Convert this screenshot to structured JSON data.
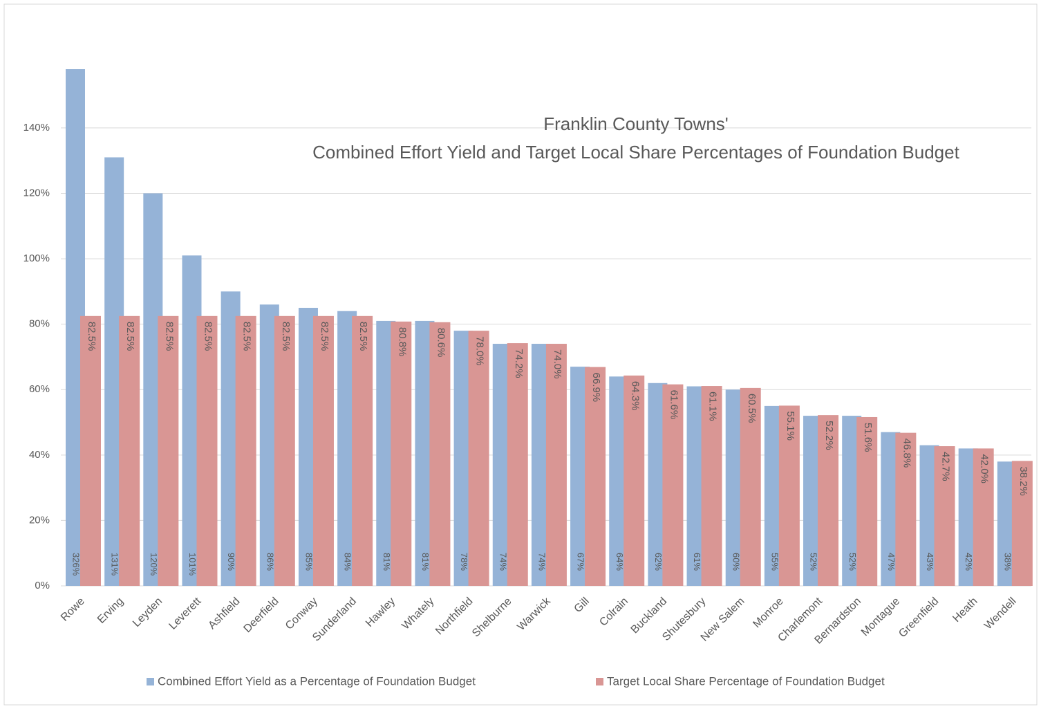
{
  "chart_data": {
    "type": "bar",
    "title": [
      "Franklin County Towns'",
      "Combined Effort Yield and Target Local Share Percentages of Foundation Budget"
    ],
    "categories": [
      "Rowe",
      "Erving",
      "Leyden",
      "Leverett",
      "Ashfield",
      "Deerfield",
      "Conway",
      "Sunderland",
      "Hawley",
      "Whately",
      "Northfield",
      "Shelburne",
      "Warwick",
      "Gill",
      "Colrain",
      "Buckland",
      "Shutesbury",
      "New Salem",
      "Monroe",
      "Charlemont",
      "Bernardston",
      "Montague",
      "Greenfield",
      "Heath",
      "Wendell"
    ],
    "series": [
      {
        "name": "Combined Effort Yield as a Percentage of Foundation Budget",
        "color": "#95b3d7",
        "values": [
          326,
          131,
          120,
          101,
          90,
          86,
          85,
          84,
          81,
          81,
          78,
          74,
          74,
          67,
          64,
          62,
          61,
          60,
          55,
          52,
          52,
          47,
          43,
          42,
          38
        ],
        "value_labels": [
          "326%",
          "131%",
          "120%",
          "101%",
          "90%",
          "86%",
          "85%",
          "84%",
          "81%",
          "81%",
          "78%",
          "74%",
          "74%",
          "67%",
          "64%",
          "62%",
          "61%",
          "60%",
          "55%",
          "52%",
          "52%",
          "47%",
          "43%",
          "42%",
          "38%"
        ]
      },
      {
        "name": "Target Local Share Percentage of Foundation Budget",
        "color": "#d99694",
        "values": [
          82.5,
          82.5,
          82.5,
          82.5,
          82.5,
          82.5,
          82.5,
          82.5,
          80.8,
          80.6,
          78.0,
          74.2,
          74.0,
          66.9,
          64.3,
          61.6,
          61.1,
          60.5,
          55.1,
          52.2,
          51.6,
          46.8,
          42.7,
          42.0,
          38.2
        ],
        "value_labels": [
          "82.5%",
          "82.5%",
          "82.5%",
          "82.5%",
          "82.5%",
          "82.5%",
          "82.5%",
          "82.5%",
          "80.8%",
          "80.6%",
          "78.0%",
          "74.2%",
          "74.0%",
          "66.9%",
          "64.3%",
          "61.6%",
          "61.1%",
          "60.5%",
          "55.1%",
          "52.2%",
          "51.6%",
          "46.8%",
          "42.7%",
          "42.0%",
          "38.2%"
        ]
      }
    ],
    "ylim": [
      0,
      150
    ],
    "yticks": [
      {
        "value": 0,
        "label": "0%"
      },
      {
        "value": 20,
        "label": "20%"
      },
      {
        "value": 40,
        "label": "40%"
      },
      {
        "value": 60,
        "label": "60%"
      },
      {
        "value": 80,
        "label": "80%"
      },
      {
        "value": 100,
        "label": "100%"
      },
      {
        "value": 120,
        "label": "120%"
      },
      {
        "value": 140,
        "label": "140%"
      }
    ],
    "grid": true,
    "legend": "bottom"
  }
}
